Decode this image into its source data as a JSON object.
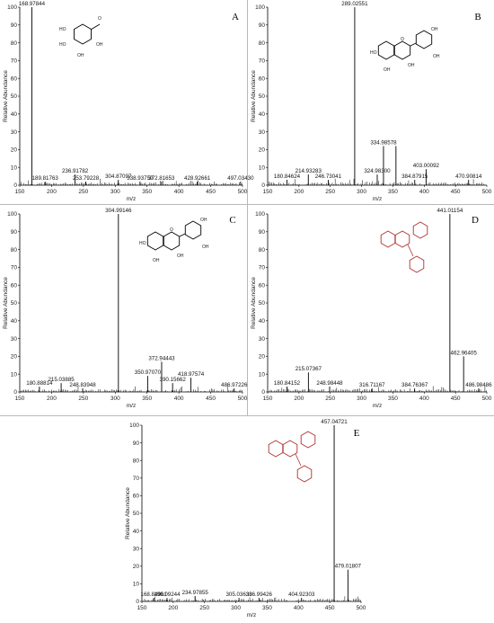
{
  "chart_data": [
    {
      "type": "bar",
      "panel": "A",
      "ylabel": "Relative Abundance",
      "xlabel": "m/z",
      "xlim": [
        150,
        500
      ],
      "ylim": [
        0,
        100
      ],
      "x_ticks": [
        150,
        200,
        250,
        300,
        350,
        400,
        450,
        500
      ],
      "y_ticks": [
        0,
        10,
        20,
        30,
        40,
        50,
        60,
        70,
        80,
        90,
        100
      ],
      "peaks": [
        {
          "mz": 168.97844,
          "value": 100,
          "label": "168.97844"
        },
        {
          "mz": 189.81763,
          "value": 2,
          "label": "189.81763"
        },
        {
          "mz": 236.91782,
          "value": 6,
          "label": "236.91782"
        },
        {
          "mz": 253.79228,
          "value": 2,
          "label": "253.79228"
        },
        {
          "mz": 304.87097,
          "value": 3,
          "label": "304.87097"
        },
        {
          "mz": 338.9375,
          "value": 2,
          "label": "338.93750"
        },
        {
          "mz": 372.81653,
          "value": 2,
          "label": "372.81653"
        },
        {
          "mz": 428.92661,
          "value": 2,
          "label": "428.92661"
        },
        {
          "mz": 497.0343,
          "value": 2,
          "label": "497.03430"
        }
      ]
    },
    {
      "type": "bar",
      "panel": "B",
      "ylabel": "Relative Abundance",
      "xlabel": "m/z",
      "xlim": [
        150,
        500
      ],
      "ylim": [
        0,
        100
      ],
      "x_ticks": [
        150,
        200,
        250,
        300,
        350,
        400,
        450,
        500
      ],
      "y_ticks": [
        0,
        10,
        20,
        30,
        40,
        50,
        60,
        70,
        80,
        90,
        100
      ],
      "peaks": [
        {
          "mz": 180.84624,
          "value": 3,
          "label": "180.84624"
        },
        {
          "mz": 214.93283,
          "value": 6,
          "label": "214.93283"
        },
        {
          "mz": 246.73041,
          "value": 3,
          "label": "246.73041"
        },
        {
          "mz": 289.02551,
          "value": 100,
          "label": "289.02551"
        },
        {
          "mz": 324.983,
          "value": 6,
          "label": "324.98300"
        },
        {
          "mz": 334.98578,
          "value": 22,
          "label": "334.98578"
        },
        {
          "mz": 354.9,
          "value": 22,
          "label": ""
        },
        {
          "mz": 384.87915,
          "value": 3,
          "label": "384.87915"
        },
        {
          "mz": 403.00092,
          "value": 9,
          "label": "403.00092"
        },
        {
          "mz": 470.90814,
          "value": 3,
          "label": "470.90814"
        }
      ]
    },
    {
      "type": "bar",
      "panel": "C",
      "ylabel": "Relative Abundance",
      "xlabel": "m/z",
      "xlim": [
        150,
        500
      ],
      "ylim": [
        0,
        100
      ],
      "x_ticks": [
        150,
        200,
        250,
        300,
        350,
        400,
        450,
        500
      ],
      "y_ticks": [
        0,
        10,
        20,
        30,
        40,
        50,
        60,
        70,
        80,
        90,
        100
      ],
      "peaks": [
        {
          "mz": 180.88814,
          "value": 3,
          "label": "180.88814"
        },
        {
          "mz": 215.03885,
          "value": 5,
          "label": "215.03885"
        },
        {
          "mz": 248.83948,
          "value": 2,
          "label": "248.83948"
        },
        {
          "mz": 304.99146,
          "value": 100,
          "label": "304.99146"
        },
        {
          "mz": 350.9707,
          "value": 9,
          "label": "350.97070"
        },
        {
          "mz": 372.94443,
          "value": 17,
          "label": "372.94443"
        },
        {
          "mz": 390.15662,
          "value": 5,
          "label": "390.15662"
        },
        {
          "mz": 418.97574,
          "value": 8,
          "label": "418.97574"
        },
        {
          "mz": 486.97226,
          "value": 2,
          "label": "486.97226"
        }
      ]
    },
    {
      "type": "bar",
      "panel": "D",
      "ylabel": "Relative Abundance",
      "xlabel": "m/z",
      "xlim": [
        150,
        500
      ],
      "ylim": [
        0,
        100
      ],
      "x_ticks": [
        150,
        200,
        250,
        300,
        350,
        400,
        450,
        500
      ],
      "y_ticks": [
        0,
        10,
        20,
        30,
        40,
        50,
        60,
        70,
        80,
        90,
        100
      ],
      "peaks": [
        {
          "mz": 180.84152,
          "value": 3,
          "label": "180.84152"
        },
        {
          "mz": 215.07367,
          "value": 11,
          "label": "215.07367"
        },
        {
          "mz": 248.98448,
          "value": 3,
          "label": "248.98448"
        },
        {
          "mz": 316.71167,
          "value": 2,
          "label": "316.71167"
        },
        {
          "mz": 384.76367,
          "value": 2,
          "label": "384.76367"
        },
        {
          "mz": 441.01154,
          "value": 100,
          "label": "441.01154"
        },
        {
          "mz": 462.96405,
          "value": 20,
          "label": "462.96405"
        },
        {
          "mz": 486.98486,
          "value": 2,
          "label": "486.98486"
        }
      ]
    },
    {
      "type": "bar",
      "panel": "E",
      "ylabel": "Relative Abundance",
      "xlabel": "m/z",
      "xlim": [
        150,
        500
      ],
      "ylim": [
        0,
        100
      ],
      "x_ticks": [
        150,
        200,
        250,
        300,
        350,
        400,
        450,
        500
      ],
      "y_ticks": [
        0,
        10,
        20,
        30,
        40,
        50,
        60,
        70,
        80,
        90,
        100
      ],
      "peaks": [
        {
          "mz": 168.84961,
          "value": 2,
          "label": "168.84961"
        },
        {
          "mz": 190.09244,
          "value": 2,
          "label": "190.09244"
        },
        {
          "mz": 234.97855,
          "value": 3,
          "label": "234.97855"
        },
        {
          "mz": 305.03638,
          "value": 2,
          "label": "305.03638"
        },
        {
          "mz": 336.99426,
          "value": 2,
          "label": "336.99426"
        },
        {
          "mz": 404.92303,
          "value": 2,
          "label": "404.92303"
        },
        {
          "mz": 457.04721,
          "value": 100,
          "label": "457.04721"
        },
        {
          "mz": 479.01807,
          "value": 18,
          "label": "479.01807"
        }
      ]
    }
  ],
  "panels": [
    {
      "letter": "A",
      "structure": {
        "labels": [
          "HO",
          "HO",
          "OH",
          "OH",
          "O"
        ]
      }
    },
    {
      "letter": "B",
      "structure": {
        "labels": [
          "HO",
          "OH",
          "OH",
          "OH",
          "OH",
          "O"
        ]
      }
    },
    {
      "letter": "C",
      "structure": {
        "labels": [
          "HO",
          "OH",
          "OH",
          "OH",
          "OH",
          "O"
        ]
      }
    },
    {
      "letter": "D",
      "structure": {
        "labels": []
      }
    },
    {
      "letter": "E",
      "structure": {
        "labels": []
      }
    }
  ]
}
